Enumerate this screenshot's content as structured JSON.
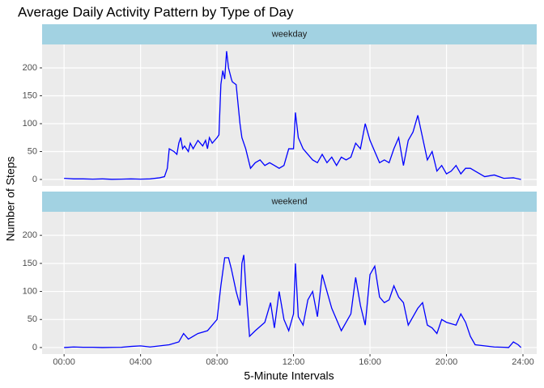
{
  "chart_data": {
    "type": "line",
    "title": "Average Daily Activity Pattern by Type of Day",
    "x_label": "5-Minute Intervals",
    "y_label": "Number of Steps",
    "color": "#0000ff",
    "grid": true,
    "xlim": [
      -1.15,
      24.72
    ],
    "xticks": [
      {
        "value": 0,
        "label": "00:00"
      },
      {
        "value": 4,
        "label": "04:00"
      },
      {
        "value": 8,
        "label": "08:00"
      },
      {
        "value": 12,
        "label": "12:00"
      },
      {
        "value": 16,
        "label": "16:00"
      },
      {
        "value": 20,
        "label": "20:00"
      },
      {
        "value": 24,
        "label": "24:00"
      }
    ],
    "ylim": [
      -11.6,
      242
    ],
    "yticks": [
      0,
      50,
      100,
      150,
      200
    ],
    "facets": [
      {
        "label": "weekday",
        "x": [
          0,
          0.5,
          1,
          1.5,
          2,
          2.5,
          3,
          3.5,
          4,
          4.5,
          5,
          5.25,
          5.4,
          5.5,
          5.75,
          5.9,
          6,
          6.1,
          6.2,
          6.3,
          6.5,
          6.6,
          6.75,
          7,
          7.25,
          7.4,
          7.5,
          7.6,
          7.75,
          8,
          8.1,
          8.2,
          8.3,
          8.4,
          8.5,
          8.6,
          8.75,
          8.8,
          9,
          9.2,
          9.3,
          9.5,
          9.75,
          10,
          10.25,
          10.5,
          10.75,
          11,
          11.25,
          11.5,
          11.75,
          12,
          12.1,
          12.25,
          12.5,
          12.75,
          13,
          13.25,
          13.5,
          13.75,
          14,
          14.25,
          14.5,
          14.75,
          15,
          15.25,
          15.5,
          15.75,
          16,
          16.25,
          16.5,
          16.75,
          17,
          17.25,
          17.5,
          17.75,
          18,
          18.25,
          18.5,
          18.75,
          19,
          19.25,
          19.5,
          19.75,
          20,
          20.25,
          20.5,
          20.75,
          21,
          21.25,
          21.5,
          22,
          22.5,
          23,
          23.5,
          23.9
        ],
        "values": [
          2,
          1,
          1,
          0.5,
          1,
          0.3,
          0.5,
          1,
          0.5,
          1,
          3,
          5,
          20,
          55,
          50,
          45,
          65,
          75,
          55,
          60,
          50,
          65,
          55,
          70,
          60,
          70,
          55,
          75,
          65,
          75,
          80,
          170,
          195,
          180,
          230,
          200,
          180,
          175,
          170,
          100,
          75,
          55,
          20,
          30,
          35,
          25,
          30,
          25,
          20,
          25,
          55,
          55,
          120,
          75,
          55,
          45,
          35,
          30,
          45,
          30,
          40,
          25,
          40,
          35,
          40,
          65,
          55,
          100,
          70,
          50,
          30,
          35,
          30,
          55,
          75,
          25,
          70,
          85,
          115,
          75,
          35,
          50,
          15,
          25,
          10,
          15,
          25,
          10,
          20,
          20,
          15,
          5,
          8,
          2,
          3,
          0
        ]
      },
      {
        "label": "weekend",
        "x": [
          0,
          0.5,
          1,
          1.5,
          2,
          2.5,
          3,
          3.5,
          4,
          4.5,
          5,
          5.5,
          6,
          6.25,
          6.5,
          6.75,
          7,
          7.5,
          8,
          8.2,
          8.4,
          8.6,
          8.75,
          9,
          9.2,
          9.3,
          9.4,
          9.5,
          9.7,
          10,
          10.5,
          10.8,
          11,
          11.25,
          11.5,
          11.75,
          12,
          12.1,
          12.25,
          12.5,
          12.75,
          13,
          13.25,
          13.5,
          13.75,
          14,
          14.5,
          14.75,
          15,
          15.25,
          15.5,
          15.75,
          16,
          16.25,
          16.5,
          16.75,
          17,
          17.25,
          17.5,
          17.75,
          18,
          18.5,
          18.75,
          19,
          19.25,
          19.5,
          19.75,
          20,
          20.5,
          20.75,
          21,
          21.25,
          21.5,
          22,
          22.5,
          23,
          23.25,
          23.5,
          23.75,
          23.9
        ],
        "values": [
          0,
          1,
          0.5,
          0.5,
          0,
          0.3,
          0.5,
          2,
          3,
          1,
          3,
          5,
          10,
          25,
          15,
          20,
          25,
          30,
          50,
          110,
          160,
          160,
          140,
          100,
          75,
          150,
          165,
          110,
          20,
          30,
          45,
          80,
          35,
          100,
          50,
          30,
          60,
          150,
          55,
          40,
          85,
          100,
          55,
          130,
          100,
          70,
          30,
          45,
          60,
          125,
          75,
          40,
          130,
          145,
          90,
          80,
          85,
          110,
          90,
          80,
          40,
          70,
          80,
          40,
          35,
          25,
          50,
          45,
          40,
          60,
          45,
          20,
          5,
          3,
          1,
          0.5,
          0,
          10,
          5,
          0
        ]
      }
    ]
  }
}
